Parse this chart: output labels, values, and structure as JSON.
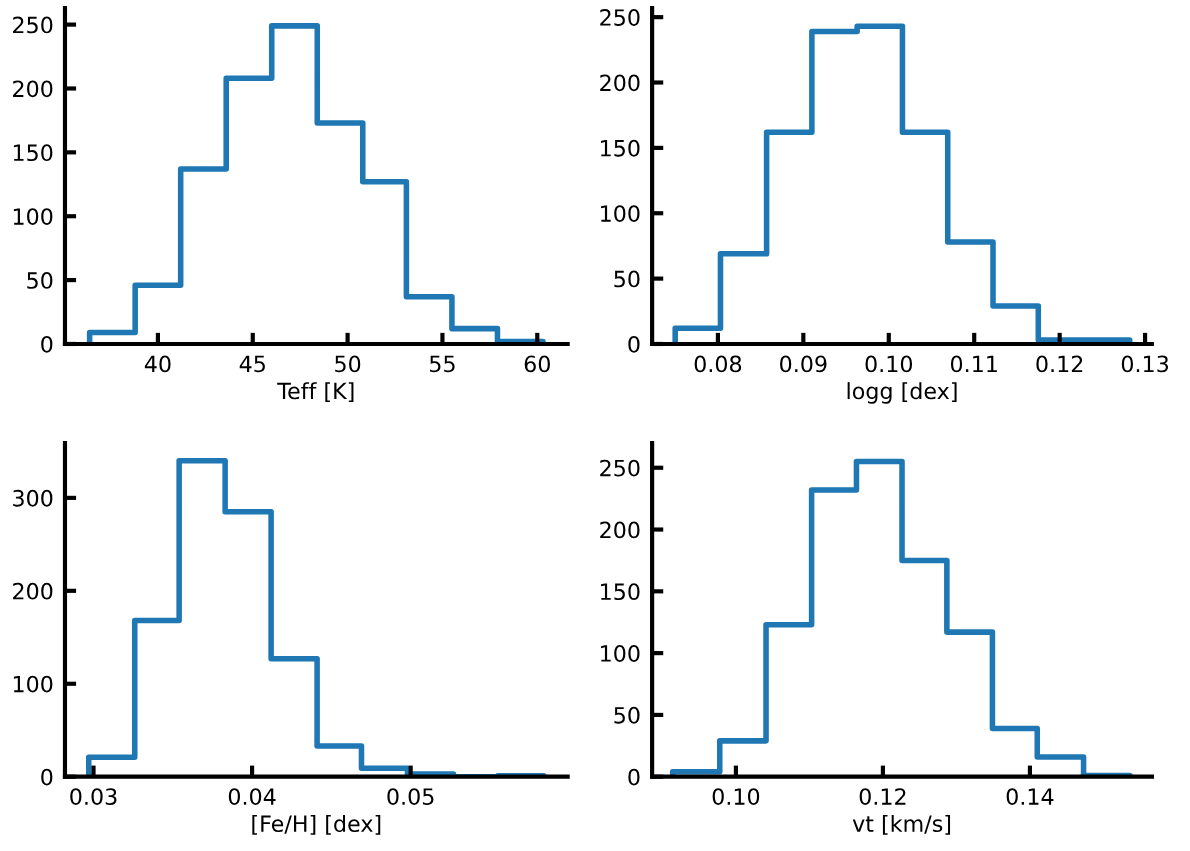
{
  "chart_data": [
    {
      "type": "histogram",
      "xlabel": "Teff [K]",
      "color": "#1f77b4",
      "grid": false,
      "bins": [
        36.4,
        38.8,
        41.2,
        43.6,
        46.0,
        48.4,
        50.8,
        53.1,
        55.5,
        57.9,
        60.3
      ],
      "values": [
        9,
        46,
        137,
        208,
        249,
        173,
        127,
        37,
        12,
        2
      ],
      "xlim": [
        35.1,
        61.6
      ],
      "xticks": [
        40,
        45,
        50,
        55,
        60
      ],
      "ylim": [
        0,
        263
      ],
      "yticks": [
        0,
        50,
        100,
        150,
        200,
        250
      ]
    },
    {
      "type": "histogram",
      "xlabel": "logg [dex]",
      "color": "#1f77b4",
      "grid": false,
      "bins": [
        0.075,
        0.0803,
        0.0857,
        0.091,
        0.0963,
        0.1016,
        0.1069,
        0.1122,
        0.1175,
        0.1228,
        0.1282
      ],
      "values": [
        12,
        69,
        162,
        239,
        243,
        162,
        78,
        29,
        3,
        3
      ],
      "xlim": [
        0.0723,
        0.1308
      ],
      "xticks": [
        {
          "value": 0.08,
          "label": "0.08"
        },
        {
          "value": 0.09,
          "label": "0.09"
        },
        {
          "value": 0.1,
          "label": "0.10"
        },
        {
          "value": 0.11,
          "label": "0.11"
        },
        {
          "value": 0.12,
          "label": "0.12"
        },
        {
          "value": 0.13,
          "label": "0.13"
        }
      ],
      "ylim": [
        0,
        257
      ],
      "yticks": [
        0,
        50,
        100,
        150,
        200,
        250
      ]
    },
    {
      "type": "histogram",
      "xlabel": "[Fe/H] [dex]",
      "color": "#1f77b4",
      "grid": false,
      "bins": [
        0.0297,
        0.0326,
        0.0354,
        0.0383,
        0.0412,
        0.0441,
        0.0469,
        0.0498,
        0.0527,
        0.0555,
        0.0584
      ],
      "values": [
        21,
        168,
        340,
        285,
        127,
        33,
        9,
        3,
        0,
        1
      ],
      "xlim": [
        0.0282,
        0.0599
      ],
      "xticks": [
        0.03,
        0.04,
        0.05
      ],
      "ylim": [
        0,
        359
      ],
      "yticks": [
        0,
        100,
        200,
        300
      ]
    },
    {
      "type": "histogram",
      "xlabel": "vt [km/s]",
      "color": "#1f77b4",
      "grid": false,
      "bins": [
        0.0914,
        0.0978,
        0.1041,
        0.1103,
        0.1164,
        0.1226,
        0.1287,
        0.1349,
        0.141,
        0.1473,
        0.1536
      ],
      "values": [
        4,
        29,
        123,
        232,
        255,
        175,
        117,
        39,
        16,
        1
      ],
      "xlim": [
        0.0886,
        0.1566
      ],
      "xticks": [
        {
          "value": 0.1,
          "label": "0.10"
        },
        {
          "value": 0.12,
          "label": "0.12"
        },
        {
          "value": 0.14,
          "label": "0.14"
        }
      ],
      "ylim": [
        0,
        270
      ],
      "yticks": [
        0,
        50,
        100,
        150,
        200,
        250
      ]
    }
  ]
}
